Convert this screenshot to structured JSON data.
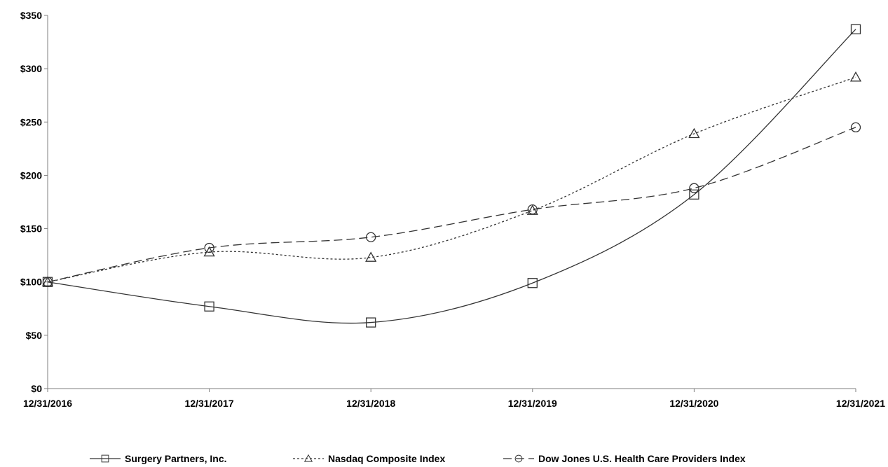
{
  "chart_data": {
    "type": "line",
    "title": "",
    "xlabel": "",
    "ylabel": "",
    "categories": [
      "12/31/2016",
      "12/31/2017",
      "12/31/2018",
      "12/31/2019",
      "12/31/2020",
      "12/31/2021"
    ],
    "ylim": [
      0,
      350
    ],
    "yticks": [
      0,
      50,
      100,
      150,
      200,
      250,
      300,
      350
    ],
    "ytick_labels": [
      "$0",
      "$50",
      "$100",
      "$150",
      "$200",
      "$250",
      "$300",
      "$350"
    ],
    "grid": false,
    "legend_position": "bottom",
    "series": [
      {
        "name": "Surgery Partners, Inc.",
        "marker": "square",
        "line_style": "solid",
        "color": "#333333",
        "values": [
          100,
          77,
          62,
          99,
          182,
          337
        ]
      },
      {
        "name": "Nasdaq Composite Index",
        "marker": "triangle",
        "line_style": "dotted",
        "color": "#333333",
        "values": [
          100,
          128,
          123,
          167,
          239,
          292
        ]
      },
      {
        "name": "Dow Jones U.S. Health Care Providers Index",
        "marker": "circle",
        "line_style": "dashed",
        "color": "#333333",
        "values": [
          100,
          132,
          142,
          168,
          188,
          245
        ]
      }
    ]
  }
}
